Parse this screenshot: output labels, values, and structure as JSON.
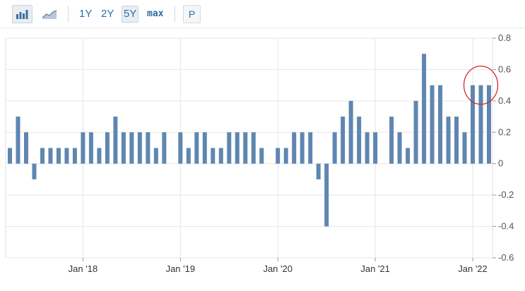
{
  "toolbar": {
    "bar_chart_icon": "bar-chart-icon",
    "line_chart_icon": "line-chart-icon",
    "ranges": [
      "1Y",
      "2Y",
      "5Y",
      "max"
    ],
    "active_range": "5Y",
    "p_label": "P"
  },
  "colors": {
    "bar": "#5f86b1",
    "grid": "#e6e6e6",
    "highlight_circle": "#d22a2a",
    "accent": "#2f6da3"
  },
  "chart_data": {
    "type": "bar",
    "title": "",
    "xlabel": "",
    "ylabel": "",
    "ylim": [
      -0.6,
      0.8
    ],
    "y_ticks": [
      "0.8",
      "0.6",
      "0.4",
      "0.2",
      "0",
      "-0.2",
      "-0.4",
      "-0.6"
    ],
    "y_axis_position": "right",
    "x_ticks": [
      "Jan '18",
      "Jan '19",
      "Jan '20",
      "Jan '21",
      "Jan '22"
    ],
    "grid": true,
    "series": [
      {
        "values": [
          0.1,
          0.3,
          0.2,
          -0.1,
          0.1,
          0.1,
          0.1,
          0.1,
          0.1,
          0.2,
          0.2,
          0.1,
          0.2,
          0.3,
          0.2,
          0.2,
          0.2,
          0.2,
          0.1,
          0.2,
          null,
          0.2,
          0.1,
          0.2,
          0.2,
          0.1,
          0.1,
          0.2,
          0.2,
          0.2,
          0.2,
          0.1,
          null,
          0.1,
          0.1,
          0.2,
          0.2,
          0.2,
          -0.1,
          -0.4,
          0.2,
          0.3,
          0.4,
          0.3,
          0.2,
          0.2,
          null,
          0.3,
          0.2,
          0.1,
          0.4,
          0.7,
          0.5,
          0.5,
          0.3,
          0.3,
          0.2,
          0.5,
          0.5,
          0.5
        ]
      }
    ],
    "annotations": [
      {
        "type": "circle",
        "target": "last three bars"
      }
    ]
  }
}
